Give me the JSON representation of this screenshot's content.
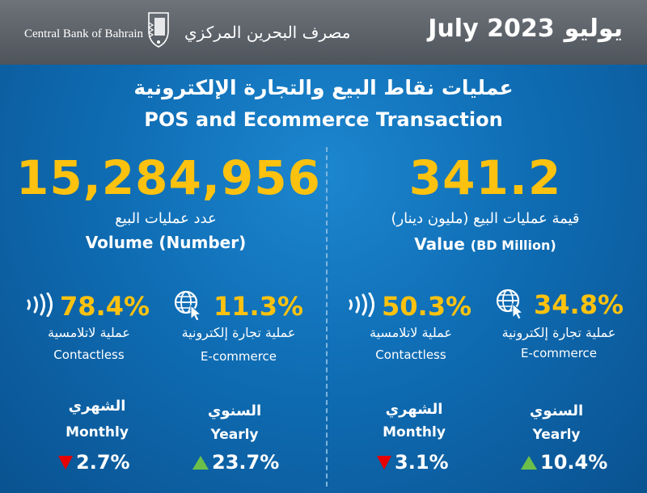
{
  "header": {
    "bank_name_en": "Central Bank of Bahrain",
    "bank_name_ar": "مصرف البحرين المركزي",
    "month_ar": "يوليو",
    "month_year_en": "July 2023"
  },
  "title": {
    "ar": "عمليات نقاط البيع والتجارة الإلكترونية",
    "en": "POS and Ecommerce Transaction"
  },
  "volume": {
    "value": "15,284,956",
    "label_ar": "عدد عمليات البيع",
    "label_en": "Volume (Number)",
    "contactless": {
      "pct": "78.4%",
      "label_ar": "عملية لاتلامسية",
      "label_en": "Contactless"
    },
    "ecommerce": {
      "pct": "11.3%",
      "label_ar": "عملية تجارة إلكترونية",
      "label_en": "E-commerce"
    },
    "monthly": {
      "label_ar": "الشهري",
      "label_en": "Monthly",
      "change": "2.7%",
      "direction": "down"
    },
    "yearly": {
      "label_ar": "السنوي",
      "label_en": "Yearly",
      "change": "23.7%",
      "direction": "up"
    }
  },
  "value": {
    "value": "341.2",
    "label_ar": "قيمة عمليات البيع (مليون دينار)",
    "label_en": "Value",
    "label_en_unit": "(BD Million)",
    "contactless": {
      "pct": "50.3%",
      "label_ar": "عملية لاتلامسية",
      "label_en": "Contactless"
    },
    "ecommerce": {
      "pct": "34.8%",
      "label_ar": "عملية تجارة إلكترونية",
      "label_en": "E-commerce"
    },
    "monthly": {
      "label_ar": "الشهري",
      "label_en": "Monthly",
      "change": "3.1%",
      "direction": "down"
    },
    "yearly": {
      "label_ar": "السنوي",
      "label_en": "Yearly",
      "change": "10.4%",
      "direction": "up"
    }
  },
  "icons": {
    "contactless": "contactless-icon",
    "ecommerce": "globe-cursor-icon",
    "decrease": "red-down-triangle-icon",
    "increase": "green-up-triangle-icon"
  },
  "colors": {
    "highlight": "#fdc20f",
    "background": "#0f6db4",
    "header": "#5a6068",
    "decrease": "#e60000",
    "increase": "#6cc04a"
  }
}
